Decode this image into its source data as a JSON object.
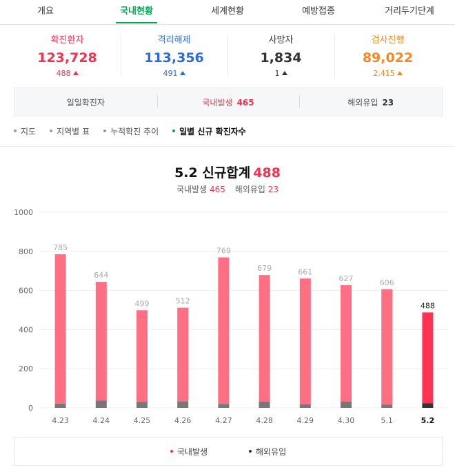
{
  "tabs": [
    {
      "label": "개요"
    },
    {
      "label": "국내현황"
    },
    {
      "label": "세계현황"
    },
    {
      "label": "예방접종"
    },
    {
      "label": "거리두기단계"
    }
  ],
  "stats": [
    {
      "label": "확진환자",
      "value": "123,728",
      "delta": "488",
      "color": "#f2334f"
    },
    {
      "label": "격리해제",
      "value": "113,356",
      "delta": "491",
      "color": "#2d6bd8"
    },
    {
      "label": "사망자",
      "value": "1,834",
      "delta": "1",
      "color": "#333333"
    },
    {
      "label": "검사진행",
      "value": "89,022",
      "delta": "2,415",
      "color": "#f5891f"
    }
  ],
  "summary": {
    "daily_label": "일일확진자",
    "domestic_label": "국내발생",
    "domestic_value": "465",
    "overseas_label": "해외유입",
    "overseas_value": "23"
  },
  "subtabs": [
    {
      "label": "지도"
    },
    {
      "label": "지역별 표"
    },
    {
      "label": "누적확진 추이"
    },
    {
      "label": "일별 신규 확진자수"
    }
  ],
  "headline": {
    "title": "5.2 신규합계",
    "total": "488",
    "domestic_label": "국내발생",
    "domestic_value": "465",
    "overseas_label": "해외유입",
    "overseas_value": "23"
  },
  "legend": {
    "domestic": "국내발생",
    "overseas": "해외유입"
  },
  "colors": {
    "domestic": "#ff6f83",
    "domestic_highlight": "#ff3452",
    "overseas": "#777777",
    "overseas_highlight": "#333333",
    "accent": "#00a84f"
  },
  "chart_data": {
    "type": "bar",
    "stacked": true,
    "categories": [
      "4.23",
      "4.24",
      "4.25",
      "4.26",
      "4.27",
      "4.28",
      "4.29",
      "4.30",
      "5.1",
      "5.2"
    ],
    "totals": [
      785,
      644,
      499,
      512,
      769,
      679,
      661,
      627,
      606,
      488
    ],
    "series": [
      {
        "name": "국내발생",
        "values": [
          763,
          606,
          468,
          479,
          749,
          647,
          643,
          595,
          589,
          465
        ]
      },
      {
        "name": "해외유입",
        "values": [
          22,
          38,
          31,
          33,
          20,
          32,
          18,
          32,
          17,
          23
        ]
      }
    ],
    "ylim": [
      0,
      1000
    ],
    "yticks": [
      0,
      200,
      400,
      600,
      800,
      1000
    ],
    "grid": true,
    "legend_position": "bottom"
  }
}
